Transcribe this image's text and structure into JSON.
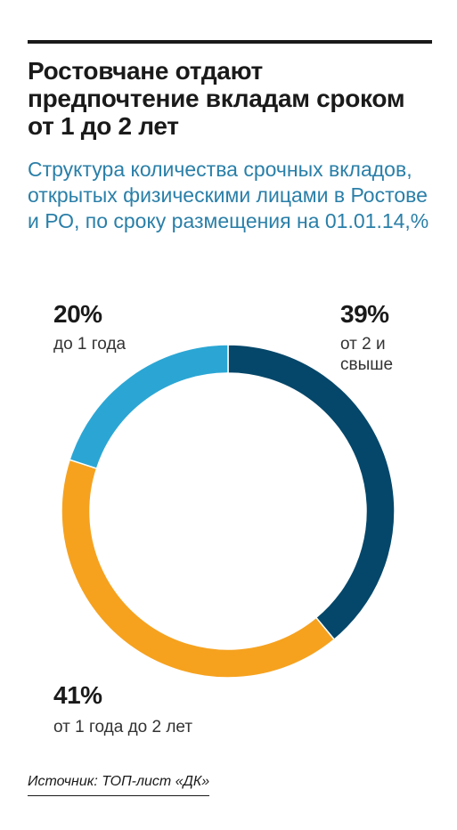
{
  "header": {
    "title": "Ростовчане отдают предпочтение вкладам сроком от 1 до 2 лет",
    "subtitle": "Структура количества срочных вкладов, открытых физическими лицами в Ростове и РО, по сроку размещения  на 01.01.14,%"
  },
  "chart_data": {
    "type": "pie",
    "donut": true,
    "unit": "%",
    "categories": [
      "от 2 и свыше",
      "от 1 года до 2 лет",
      "до 1 года"
    ],
    "values": [
      39,
      41,
      20
    ],
    "value_labels": [
      "39%",
      "41%",
      "20%"
    ],
    "colors": [
      "#04476a",
      "#f6a21f",
      "#2ba6d4"
    ],
    "start_angle": "12 o'clock",
    "direction": "clockwise"
  },
  "footer": {
    "source": "Источник: ТОП-лист «ДК»"
  }
}
